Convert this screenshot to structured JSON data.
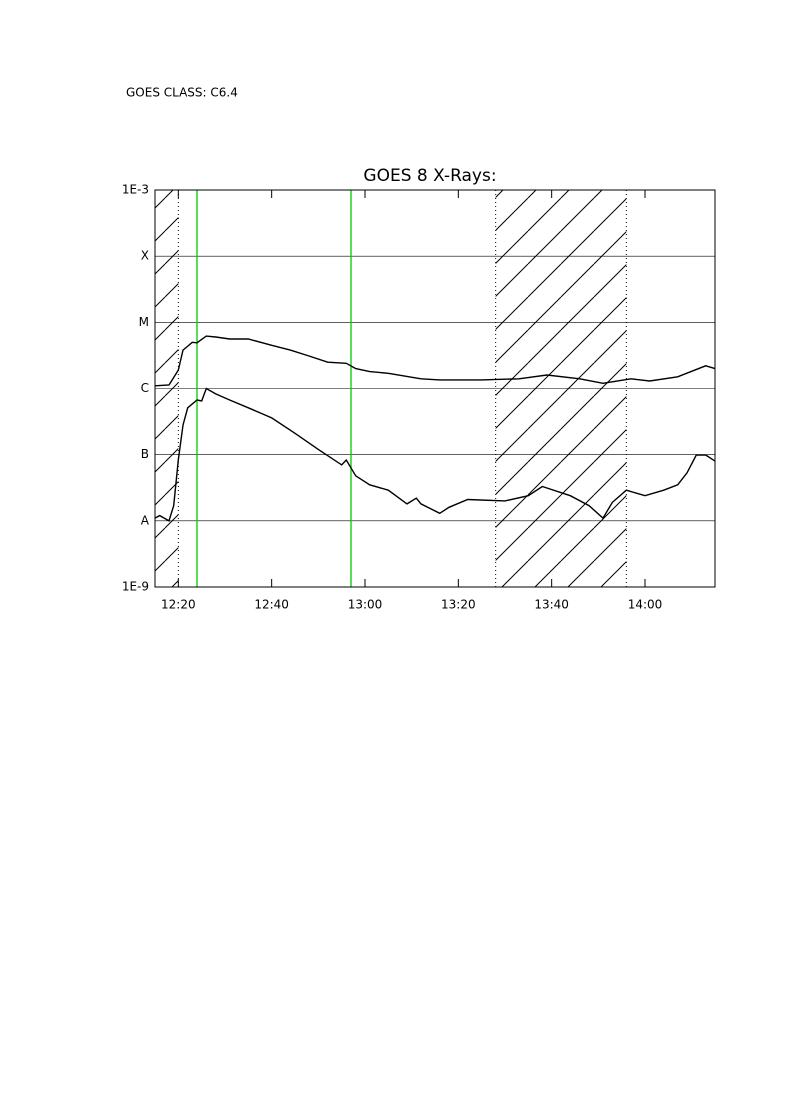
{
  "chart_data": {
    "type": "line",
    "header": "GOES CLASS: C6.4",
    "title": "GOES 8 X-Rays:",
    "log_scale": true,
    "grid": true,
    "xlim": [
      "12:15",
      "14:15"
    ],
    "xticks": [
      "12:20",
      "12:40",
      "13:00",
      "13:20",
      "13:40",
      "14:00"
    ],
    "ylim": [
      1e-09,
      0.001
    ],
    "yticks": [
      {
        "value": 0.001,
        "label": "1E-3"
      },
      {
        "value": 0.0001,
        "label": "X"
      },
      {
        "value": 1e-05,
        "label": "M"
      },
      {
        "value": 1e-06,
        "label": "C"
      },
      {
        "value": 1e-07,
        "label": "B"
      },
      {
        "value": 1e-08,
        "label": "A"
      },
      {
        "value": 1e-09,
        "label": "1E-9"
      }
    ],
    "marker_lines": {
      "color": "#00cc00",
      "x": [
        "12:24",
        "12:57"
      ]
    },
    "hatched": [
      [
        "12:15",
        "12:20"
      ],
      [
        "13:28",
        "13:56"
      ]
    ],
    "series": [
      {
        "color": "#000000",
        "x": [
          "12:15",
          "12:18",
          "12:20",
          "12:21",
          "12:23",
          "12:24",
          "12:26",
          "12:28",
          "12:31",
          "12:35",
          "12:40",
          "12:44",
          "12:48",
          "12:52",
          "12:56",
          "12:58",
          "13:01",
          "13:05",
          "13:12",
          "13:16",
          "13:25",
          "13:33",
          "13:39",
          "13:46",
          "13:51",
          "13:57",
          "14:01",
          "14:07",
          "14:13",
          "14:15"
        ],
        "values": [
          1.1e-06,
          1.13e-06,
          1.9e-06,
          3.8e-06,
          5e-06,
          4.9e-06,
          6.2e-06,
          6e-06,
          5.6e-06,
          5.6e-06,
          4.5e-06,
          3.8e-06,
          3.1e-06,
          2.5e-06,
          2.4e-06,
          2e-06,
          1.8e-06,
          1.7e-06,
          1.4e-06,
          1.35e-06,
          1.35e-06,
          1.4e-06,
          1.6e-06,
          1.4e-06,
          1.2e-06,
          1.4e-06,
          1.3e-06,
          1.5e-06,
          2.2e-06,
          2e-06
        ]
      },
      {
        "color": "#000000",
        "x": [
          "12:15",
          "12:16",
          "12:18",
          "12:19",
          "12:20",
          "12:21",
          "12:22",
          "12:24",
          "12:25",
          "12:26",
          "12:28",
          "12:31",
          "12:35",
          "12:40",
          "12:45",
          "12:50",
          "12:55",
          "12:56",
          "12:58",
          "13:01",
          "13:05",
          "13:09",
          "13:11",
          "13:12",
          "13:16",
          "13:18",
          "13:22",
          "13:30",
          "13:35",
          "13:38",
          "13:44",
          "13:48",
          "13:51",
          "13:53",
          "13:56",
          "14:00",
          "14:04",
          "14:07",
          "14:09",
          "14:11",
          "14:13",
          "14:15"
        ],
        "values": [
          1.1e-08,
          1.2e-08,
          1e-08,
          1.7e-08,
          8.3e-08,
          2.8e-07,
          5.1e-07,
          6.7e-07,
          6.5e-07,
          1e-06,
          8.3e-07,
          6.7e-07,
          5.1e-07,
          3.6e-07,
          2.1e-07,
          1.2e-07,
          7e-08,
          8.3e-08,
          4.8e-08,
          3.5e-08,
          2.9e-08,
          1.8e-08,
          2.2e-08,
          1.8e-08,
          1.3e-08,
          1.6e-08,
          2.1e-08,
          2e-08,
          2.4e-08,
          3.3e-08,
          2.4e-08,
          1.7e-08,
          1.1e-08,
          1.9e-08,
          2.9e-08,
          2.4e-08,
          2.9e-08,
          3.5e-08,
          5.3e-08,
          9.9e-08,
          9.9e-08,
          8e-08
        ]
      }
    ]
  }
}
